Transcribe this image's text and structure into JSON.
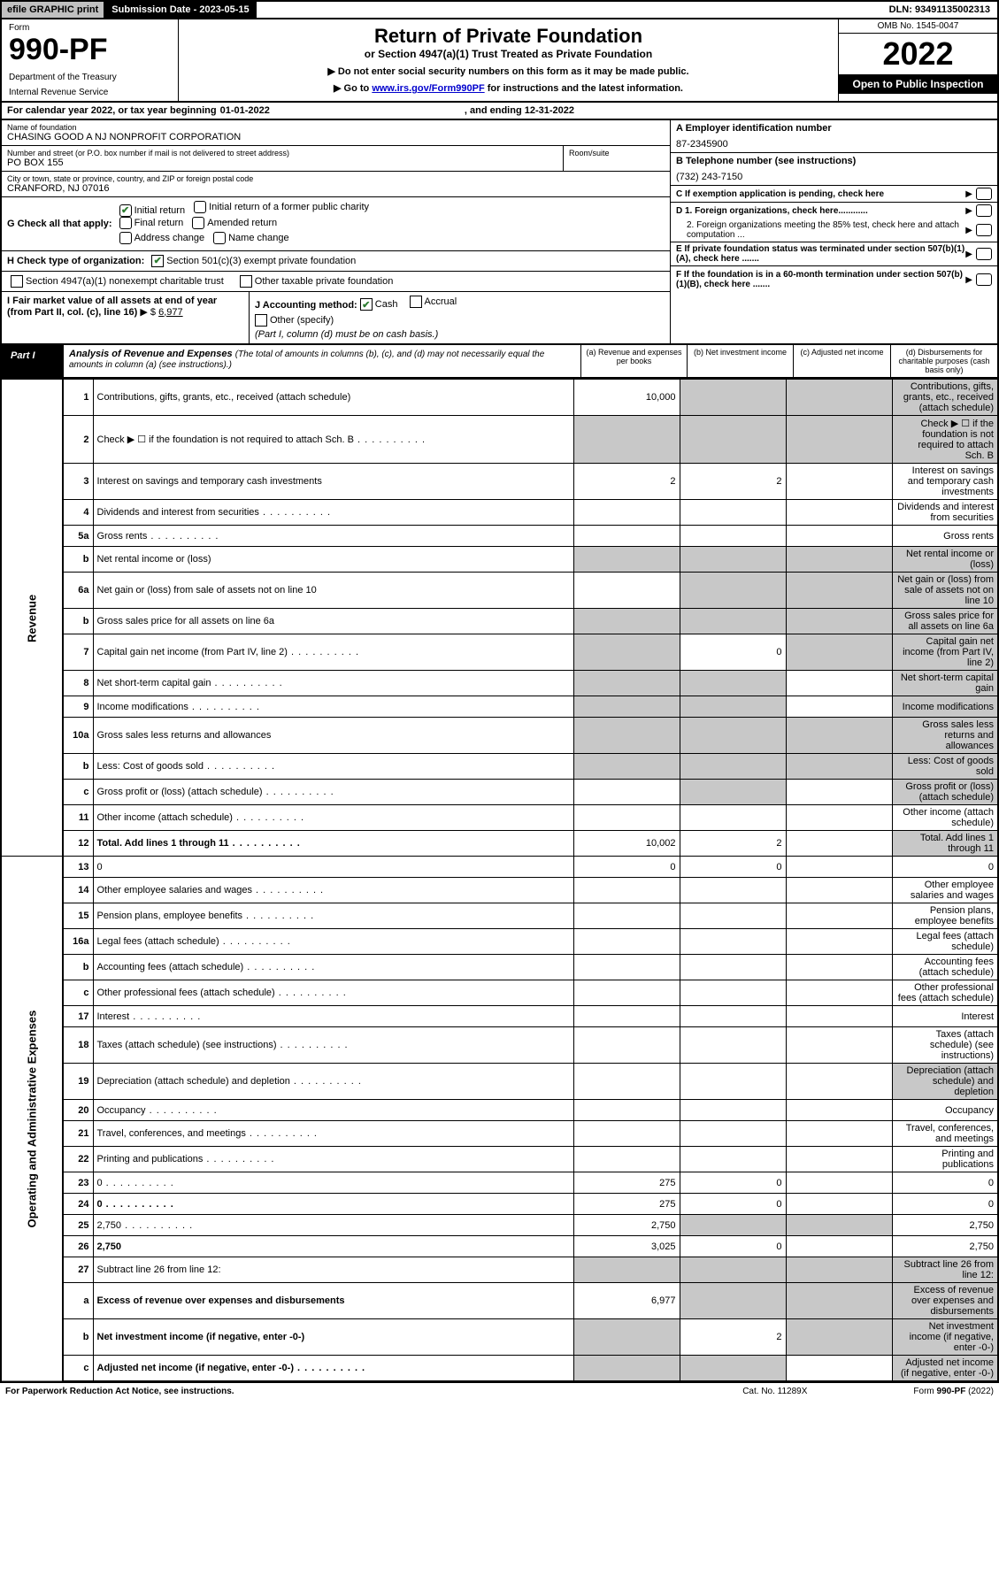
{
  "colors": {
    "black": "#000000",
    "gray": "#c0c0c0",
    "shade": "#c8c8c8",
    "link": "#0000cd",
    "check": "#2e7d32"
  },
  "topbar": {
    "efile": "efile GRAPHIC print",
    "sub_label": "Submission Date - ",
    "sub_date": "2023-05-15",
    "dln": "DLN: 93491135002313"
  },
  "header": {
    "form": "Form",
    "number": "990-PF",
    "dept1": "Department of the Treasury",
    "dept2": "Internal Revenue Service",
    "title": "Return of Private Foundation",
    "subtitle": "or Section 4947(a)(1) Trust Treated as Private Foundation",
    "warn1": "▶ Do not enter social security numbers on this form as it may be made public.",
    "warn2_pre": "▶ Go to ",
    "warn2_link": "www.irs.gov/Form990PF",
    "warn2_post": " for instructions and the latest information.",
    "omb": "OMB No. 1545-0047",
    "year": "2022",
    "open": "Open to Public Inspection"
  },
  "cal": {
    "pre": "For calendar year 2022, or tax year beginning ",
    "beg": "01-01-2022",
    "mid": ", and ending ",
    "end": "12-31-2022"
  },
  "entity": {
    "name_lbl": "Name of foundation",
    "name": "CHASING GOOD A NJ NONPROFIT CORPORATION",
    "addr_lbl": "Number and street (or P.O. box number if mail is not delivered to street address)",
    "room_lbl": "Room/suite",
    "addr": "PO BOX 155",
    "city_lbl": "City or town, state or province, country, and ZIP or foreign postal code",
    "city": "CRANFORD, NJ  07016",
    "a_lbl": "A Employer identification number",
    "a_val": "87-2345900",
    "b_lbl": "B Telephone number (see instructions)",
    "b_val": "(732) 243-7150",
    "c_lbl": "C If exemption application is pending, check here",
    "d1": "D 1. Foreign organizations, check here............",
    "d2": "2. Foreign organizations meeting the 85% test, check here and attach computation ...",
    "e_lbl": "E  If private foundation status was terminated under section 507(b)(1)(A), check here .......",
    "f_lbl": "F  If the foundation is in a 60-month termination under section 507(b)(1)(B), check here ......."
  },
  "g": {
    "lbl": "G Check all that apply:",
    "opts": [
      "Initial return",
      "Initial return of a former public charity",
      "Final return",
      "Amended return",
      "Address change",
      "Name change"
    ],
    "checked": [
      true,
      false,
      false,
      false,
      false,
      false
    ]
  },
  "h": {
    "lbl": "H Check type of organization:",
    "o1": "Section 501(c)(3) exempt private foundation",
    "o1_checked": true,
    "o2": "Section 4947(a)(1) nonexempt charitable trust",
    "o2_checked": false,
    "o3": "Other taxable private foundation",
    "o3_checked": false
  },
  "i": {
    "lbl": "I Fair market value of all assets at end of year (from Part II, col. (c), line 16)",
    "arrow": "▶ $",
    "val": "6,977"
  },
  "j": {
    "lbl": "J Accounting method:",
    "cash": "Cash",
    "cash_checked": true,
    "accrual": "Accrual",
    "accrual_checked": false,
    "other": "Other (specify)",
    "note": "(Part I, column (d) must be on cash basis.)"
  },
  "part1": {
    "label": "Part I",
    "title": "Analysis of Revenue and Expenses",
    "sub": "(The total of amounts in columns (b), (c), and (d) may not necessarily equal the amounts in column (a) (see instructions).)",
    "col_a": "(a)   Revenue and expenses per books",
    "col_b": "(b)   Net investment income",
    "col_c": "(c)   Adjusted net income",
    "col_d": "(d)  Disbursements for charitable purposes (cash basis only)"
  },
  "side_rev": "Revenue",
  "side_exp": "Operating and Administrative Expenses",
  "rows_rev": [
    {
      "n": "1",
      "d": "Contributions, gifts, grants, etc., received (attach schedule)",
      "a": "10,000",
      "shade_bcd": true
    },
    {
      "n": "2",
      "d": "Check ▶ ☐ if the foundation is not required to attach Sch. B",
      "dots": true,
      "shade_all": true
    },
    {
      "n": "3",
      "d": "Interest on savings and temporary cash investments",
      "a": "2",
      "b": "2"
    },
    {
      "n": "4",
      "d": "Dividends and interest from securities",
      "dots": true
    },
    {
      "n": "5a",
      "d": "Gross rents",
      "dots": true
    },
    {
      "n": "b",
      "d": "Net rental income or (loss)",
      "underline": true,
      "shade_all": true
    },
    {
      "n": "6a",
      "d": "Net gain or (loss) from sale of assets not on line 10",
      "shade_bcd": true
    },
    {
      "n": "b",
      "d": "Gross sales price for all assets on line 6a",
      "underline": true,
      "shade_all": true
    },
    {
      "n": "7",
      "d": "Capital gain net income (from Part IV, line 2)",
      "dots": true,
      "b": "0",
      "shade_a": true,
      "shade_cd": true
    },
    {
      "n": "8",
      "d": "Net short-term capital gain",
      "dots": true,
      "shade_ab": true,
      "shade_d": true
    },
    {
      "n": "9",
      "d": "Income modifications",
      "dots": true,
      "shade_ab": true,
      "shade_d": true
    },
    {
      "n": "10a",
      "d": "Gross sales less returns and allowances",
      "underline": true,
      "shade_all": true
    },
    {
      "n": "b",
      "d": "Less: Cost of goods sold",
      "dots": true,
      "underline": true,
      "shade_all": true
    },
    {
      "n": "c",
      "d": "Gross profit or (loss) (attach schedule)",
      "dots": true,
      "shade_b": true,
      "shade_d": true
    },
    {
      "n": "11",
      "d": "Other income (attach schedule)",
      "dots": true
    },
    {
      "n": "12",
      "d": "Total. Add lines 1 through 11",
      "dots": true,
      "bold": true,
      "a": "10,002",
      "b": "2",
      "shade_d": true
    }
  ],
  "rows_exp": [
    {
      "n": "13",
      "d": "0",
      "a": "0",
      "b": "0"
    },
    {
      "n": "14",
      "d": "Other employee salaries and wages",
      "dots": true
    },
    {
      "n": "15",
      "d": "Pension plans, employee benefits",
      "dots": true
    },
    {
      "n": "16a",
      "d": "Legal fees (attach schedule)",
      "dots": true
    },
    {
      "n": "b",
      "d": "Accounting fees (attach schedule)",
      "dots": true
    },
    {
      "n": "c",
      "d": "Other professional fees (attach schedule)",
      "dots": true
    },
    {
      "n": "17",
      "d": "Interest",
      "dots": true
    },
    {
      "n": "18",
      "d": "Taxes (attach schedule) (see instructions)",
      "dots": true
    },
    {
      "n": "19",
      "d": "Depreciation (attach schedule) and depletion",
      "dots": true,
      "shade_d": true
    },
    {
      "n": "20",
      "d": "Occupancy",
      "dots": true
    },
    {
      "n": "21",
      "d": "Travel, conferences, and meetings",
      "dots": true
    },
    {
      "n": "22",
      "d": "Printing and publications",
      "dots": true
    },
    {
      "n": "23",
      "d": "0",
      "dots": true,
      "a": "275",
      "b": "0"
    },
    {
      "n": "24",
      "d": "0",
      "dots": true,
      "bold": true,
      "a": "275",
      "b": "0"
    },
    {
      "n": "25",
      "d": "2,750",
      "dots": true,
      "a": "2,750",
      "shade_bc": true
    },
    {
      "n": "26",
      "d": "2,750",
      "bold": true,
      "a": "3,025",
      "b": "0"
    },
    {
      "n": "27",
      "d": "Subtract line 26 from line 12:",
      "shade_all": true
    },
    {
      "n": "a",
      "d": "Excess of revenue over expenses and disbursements",
      "bold": true,
      "a": "6,977",
      "shade_bcd": true
    },
    {
      "n": "b",
      "d": "Net investment income (if negative, enter -0-)",
      "bold": true,
      "b": "2",
      "shade_a": true,
      "shade_cd": true
    },
    {
      "n": "c",
      "d": "Adjusted net income (if negative, enter -0-)",
      "bold": true,
      "dots": true,
      "shade_ab": true,
      "shade_d": true
    }
  ],
  "footer": {
    "l": "For Paperwork Reduction Act Notice, see instructions.",
    "m": "Cat. No. 11289X",
    "r": "Form 990-PF (2022)"
  }
}
